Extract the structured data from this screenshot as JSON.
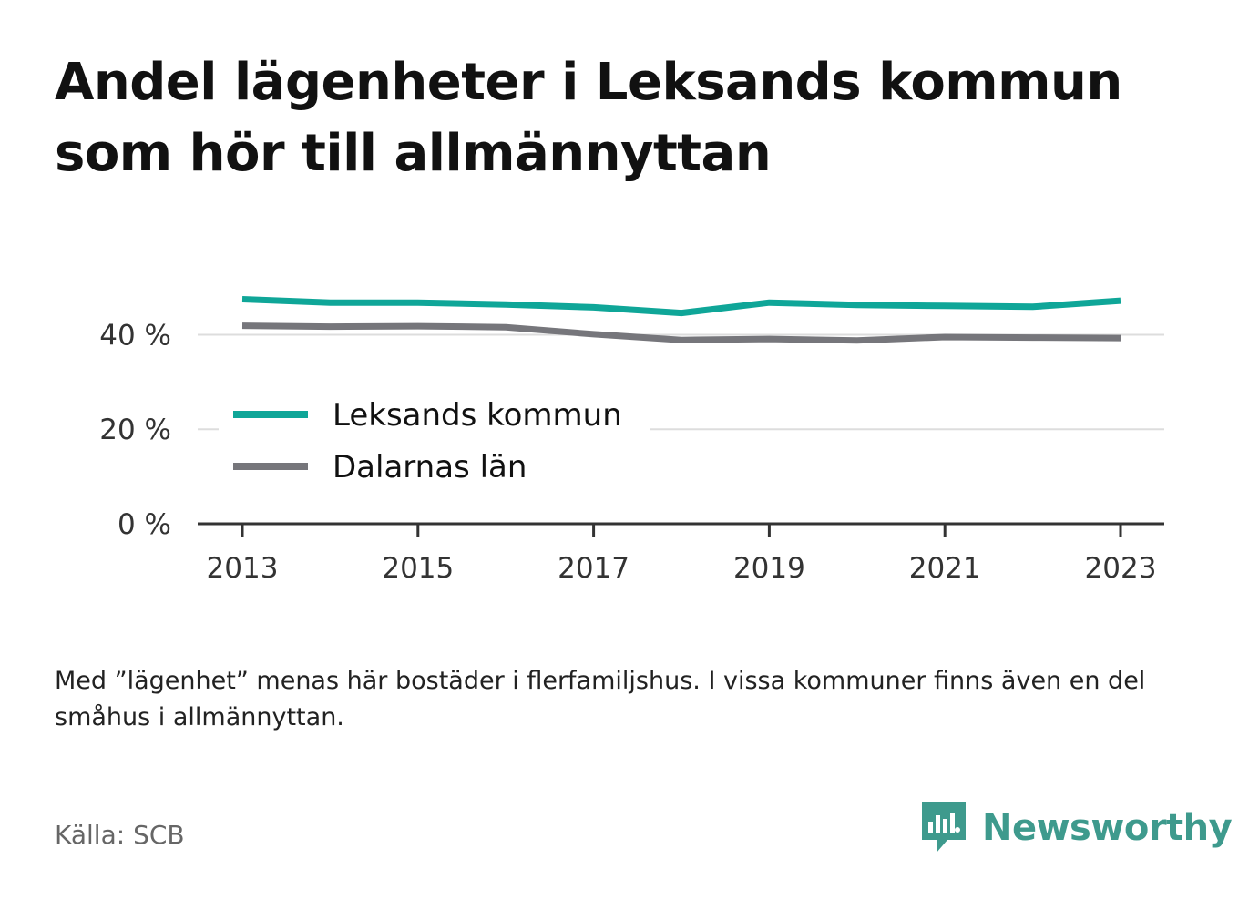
{
  "title": "Andel lägenheter i Leksands kommun som hör till allmännyttan",
  "chart_data": {
    "type": "line",
    "x": [
      2013,
      2014,
      2015,
      2016,
      2017,
      2018,
      2019,
      2020,
      2021,
      2022,
      2023
    ],
    "x_ticks": [
      "2013",
      "2015",
      "2017",
      "2019",
      "2021",
      "2023"
    ],
    "y_ticks": [
      "0 %",
      "20 %",
      "40 %"
    ],
    "ylim": [
      0,
      53
    ],
    "grid": true,
    "legend_position": "inside, middle-left",
    "series": [
      {
        "name": "Leksands kommun",
        "color": "#0fa698",
        "values": [
          47.5,
          46.8,
          46.8,
          46.4,
          45.8,
          44.6,
          46.8,
          46.3,
          46.1,
          45.9,
          47.2
        ]
      },
      {
        "name": "Dalarnas län",
        "color": "#76767b",
        "values": [
          41.9,
          41.7,
          41.8,
          41.6,
          40.1,
          38.9,
          39.1,
          38.8,
          39.5,
          39.4,
          39.3
        ]
      }
    ]
  },
  "note": "Med ”lägenhet” menas här bostäder i flerfamiljshus. I vissa kommuner finns även en del småhus i allmännyttan.",
  "source": "Källa: SCB",
  "brand": {
    "name": "Newsworthy",
    "color": "#3e9a8d",
    "icon": "newsworthy-logo-icon"
  }
}
